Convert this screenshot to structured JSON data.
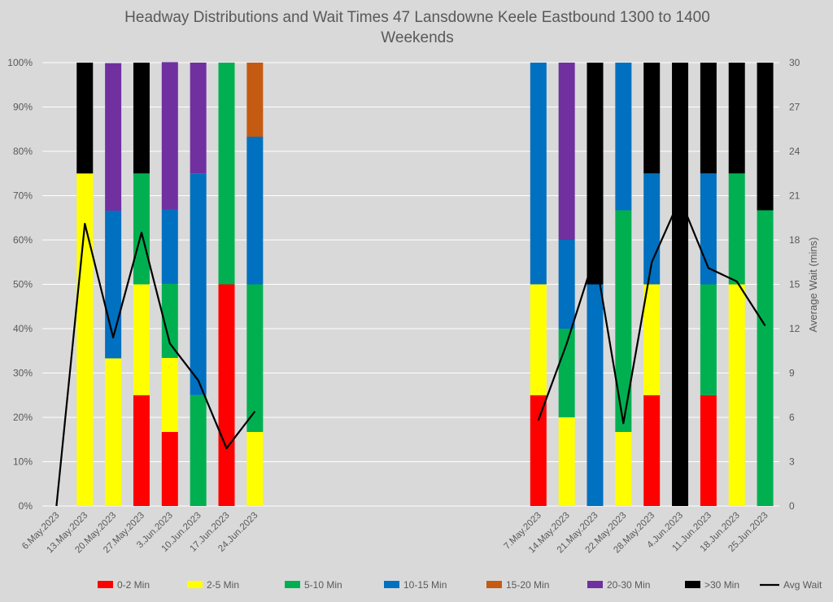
{
  "chart_data": {
    "type": "bar",
    "stacked": "100%",
    "title": "Headway Distributions and Wait Times 47 Lansdowne  Keele Eastbound 1300 to 1400",
    "subtitle": "Weekends",
    "xlabel": "",
    "ylabel": "",
    "y2label": "Average Wait (mins)",
    "ylim": [
      0,
      100
    ],
    "y2lim": [
      0,
      30
    ],
    "yticks": [
      "0%",
      "10%",
      "20%",
      "30%",
      "40%",
      "50%",
      "60%",
      "70%",
      "80%",
      "90%",
      "100%"
    ],
    "y2ticks": [
      "0",
      "3",
      "6",
      "9",
      "12",
      "15",
      "18",
      "21",
      "24",
      "27",
      "30"
    ],
    "grid": true,
    "legend_position": "bottom",
    "categories": [
      "6.May.2023",
      "13.May.2023",
      "20.May.2023",
      "27.May.2023",
      "3.Jun.2023",
      "10.Jun.2023",
      "17.Jun.2023",
      "24.Jun.2023",
      "",
      "",
      "",
      "",
      "",
      "",
      "",
      "",
      "",
      "7.May.2023",
      "14.May.2023",
      "21.May.2023",
      "22.May.2023",
      "28.May.2023",
      "4.Jun.2023",
      "11.Jun.2023",
      "18.Jun.2023",
      "25.Jun.2023"
    ],
    "series": [
      {
        "name": "0-2 Min",
        "color": "#ff0000",
        "values": [
          0,
          0,
          0,
          25,
          16.7,
          0,
          50,
          0,
          0,
          0,
          0,
          0,
          0,
          0,
          0,
          0,
          0,
          25,
          0,
          0,
          0,
          25,
          0,
          25,
          0,
          0
        ]
      },
      {
        "name": "2-5 Min",
        "color": "#ffff00",
        "values": [
          0,
          75,
          33.3,
          25,
          16.7,
          0,
          0,
          16.7,
          0,
          0,
          0,
          0,
          0,
          0,
          0,
          0,
          0,
          25,
          20,
          0,
          16.7,
          25,
          0,
          0,
          50,
          0
        ]
      },
      {
        "name": "5-10 Min",
        "color": "#00b050",
        "values": [
          0,
          0,
          0,
          25,
          16.7,
          25,
          50,
          33.3,
          0,
          0,
          0,
          0,
          0,
          0,
          0,
          0,
          0,
          0,
          20,
          0,
          50,
          0,
          0,
          25,
          25,
          66.7
        ]
      },
      {
        "name": "10-15 Min",
        "color": "#0070c0",
        "values": [
          0,
          0,
          33.3,
          0,
          16.7,
          50,
          0,
          33.3,
          0,
          0,
          0,
          0,
          0,
          0,
          0,
          0,
          0,
          50,
          20,
          50,
          33.3,
          25,
          0,
          25,
          0,
          0
        ]
      },
      {
        "name": "15-20 Min",
        "color": "#c55a11",
        "values": [
          0,
          0,
          0,
          0,
          0,
          0,
          0,
          16.7,
          0,
          0,
          0,
          0,
          0,
          0,
          0,
          0,
          0,
          0,
          0,
          0,
          0,
          0,
          0,
          0,
          0,
          0
        ]
      },
      {
        "name": "20-30 Min",
        "color": "#7030a0",
        "values": [
          0,
          0,
          33.3,
          0,
          33.3,
          25,
          0,
          0,
          0,
          0,
          0,
          0,
          0,
          0,
          0,
          0,
          0,
          0,
          40,
          0,
          0,
          0,
          0,
          0,
          0,
          0
        ]
      },
      {
        "name": ">30 Min",
        "color": "#000000",
        "values": [
          0,
          25,
          0,
          25,
          0,
          0,
          0,
          0,
          0,
          0,
          0,
          0,
          0,
          0,
          0,
          0,
          0,
          0,
          0,
          50,
          0,
          25,
          100,
          25,
          25,
          33.3
        ]
      }
    ],
    "line_series": {
      "name": "Avg Wait",
      "color": "#000000",
      "axis": "secondary",
      "values": [
        0,
        19.1,
        11.4,
        18.5,
        11,
        8.5,
        3.9,
        6.4,
        null,
        null,
        null,
        null,
        null,
        null,
        null,
        null,
        null,
        5.8,
        11,
        17,
        5.6,
        16.5,
        20.8,
        16.1,
        15.2,
        12.2
      ]
    }
  }
}
